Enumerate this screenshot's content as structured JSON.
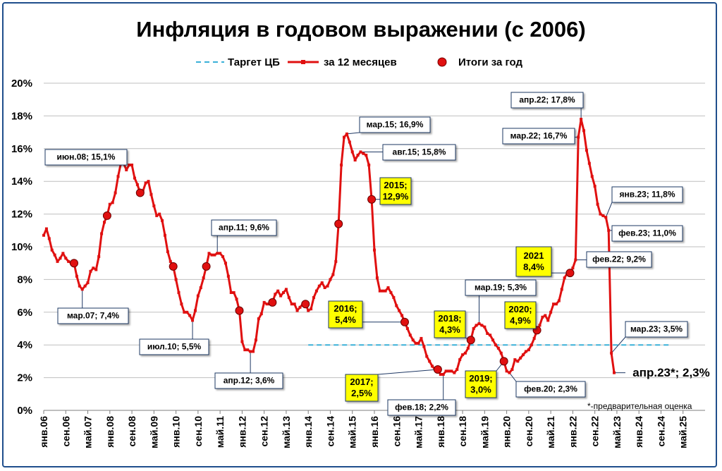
{
  "chart_data": {
    "type": "line",
    "title": "Инфляция в годовом выражении (с 2006)",
    "y_unit": "%",
    "ylim": [
      0,
      20
    ],
    "yticks": [
      "0%",
      "2%",
      "4%",
      "6%",
      "8%",
      "10%",
      "12%",
      "14%",
      "16%",
      "18%",
      "20%"
    ],
    "xticks": [
      "янв.06",
      "сен.06",
      "май.07",
      "янв.08",
      "сен.08",
      "май.09",
      "янв.10",
      "сен.10",
      "май.11",
      "янв.12",
      "сен.12",
      "май.13",
      "янв.14",
      "сен.14",
      "май.15",
      "янв.16",
      "сен.16",
      "май.17",
      "янв.18",
      "сен.18",
      "май.19",
      "янв.20",
      "сен.20",
      "май.21",
      "янв.22",
      "сен.22",
      "май.23",
      "янв.24",
      "сен.24",
      "май.25"
    ],
    "grid": "horizontal",
    "legend_position": "top",
    "series": [
      {
        "name": "Таргет ЦБ",
        "style": "dashed",
        "color": "#3ab0d8",
        "points": [
          [
            "2014-01",
            4.0
          ],
          [
            "2024-12",
            4.0
          ]
        ]
      },
      {
        "name": "за 12 месяцев",
        "style": "line-markers",
        "color": "#e01010",
        "points": [
          [
            "2006-01",
            10.7
          ],
          [
            "2006-02",
            11.1
          ],
          [
            "2006-03",
            10.5
          ],
          [
            "2006-04",
            9.8
          ],
          [
            "2006-05",
            9.5
          ],
          [
            "2006-06",
            9.1
          ],
          [
            "2006-07",
            9.3
          ],
          [
            "2006-08",
            9.6
          ],
          [
            "2006-09",
            9.3
          ],
          [
            "2006-10",
            9.1
          ],
          [
            "2006-11",
            9.0
          ],
          [
            "2006-12",
            9.0
          ],
          [
            "2007-01",
            8.2
          ],
          [
            "2007-02",
            7.6
          ],
          [
            "2007-03",
            7.4
          ],
          [
            "2007-04",
            7.6
          ],
          [
            "2007-05",
            7.8
          ],
          [
            "2007-06",
            8.5
          ],
          [
            "2007-07",
            8.7
          ],
          [
            "2007-08",
            8.6
          ],
          [
            "2007-09",
            9.4
          ],
          [
            "2007-10",
            10.8
          ],
          [
            "2007-11",
            11.5
          ],
          [
            "2007-12",
            11.9
          ],
          [
            "2008-01",
            12.6
          ],
          [
            "2008-02",
            12.7
          ],
          [
            "2008-03",
            13.3
          ],
          [
            "2008-04",
            14.3
          ],
          [
            "2008-05",
            15.1
          ],
          [
            "2008-06",
            15.1
          ],
          [
            "2008-07",
            14.7
          ],
          [
            "2008-08",
            15.0
          ],
          [
            "2008-09",
            15.0
          ],
          [
            "2008-10",
            14.2
          ],
          [
            "2008-11",
            13.8
          ],
          [
            "2008-12",
            13.3
          ],
          [
            "2009-01",
            13.4
          ],
          [
            "2009-02",
            13.9
          ],
          [
            "2009-03",
            14.0
          ],
          [
            "2009-04",
            13.2
          ],
          [
            "2009-05",
            12.5
          ],
          [
            "2009-06",
            11.9
          ],
          [
            "2009-07",
            12.0
          ],
          [
            "2009-08",
            11.6
          ],
          [
            "2009-09",
            10.7
          ],
          [
            "2009-10",
            9.7
          ],
          [
            "2009-11",
            9.1
          ],
          [
            "2009-12",
            8.8
          ],
          [
            "2010-01",
            8.0
          ],
          [
            "2010-02",
            7.2
          ],
          [
            "2010-03",
            6.5
          ],
          [
            "2010-04",
            6.0
          ],
          [
            "2010-05",
            6.0
          ],
          [
            "2010-06",
            5.8
          ],
          [
            "2010-07",
            5.5
          ],
          [
            "2010-08",
            6.1
          ],
          [
            "2010-09",
            7.0
          ],
          [
            "2010-10",
            7.5
          ],
          [
            "2010-11",
            8.1
          ],
          [
            "2010-12",
            8.8
          ],
          [
            "2011-01",
            9.6
          ],
          [
            "2011-02",
            9.5
          ],
          [
            "2011-03",
            9.5
          ],
          [
            "2011-04",
            9.6
          ],
          [
            "2011-05",
            9.6
          ],
          [
            "2011-06",
            9.4
          ],
          [
            "2011-07",
            9.0
          ],
          [
            "2011-08",
            8.2
          ],
          [
            "2011-09",
            7.2
          ],
          [
            "2011-10",
            7.2
          ],
          [
            "2011-11",
            6.8
          ],
          [
            "2011-12",
            6.1
          ],
          [
            "2012-01",
            4.2
          ],
          [
            "2012-02",
            3.7
          ],
          [
            "2012-03",
            3.7
          ],
          [
            "2012-04",
            3.6
          ],
          [
            "2012-05",
            3.6
          ],
          [
            "2012-06",
            4.3
          ],
          [
            "2012-07",
            5.6
          ],
          [
            "2012-08",
            5.9
          ],
          [
            "2012-09",
            6.6
          ],
          [
            "2012-10",
            6.5
          ],
          [
            "2012-11",
            6.5
          ],
          [
            "2012-12",
            6.6
          ],
          [
            "2013-01",
            7.1
          ],
          [
            "2013-02",
            7.3
          ],
          [
            "2013-03",
            7.0
          ],
          [
            "2013-04",
            7.2
          ],
          [
            "2013-05",
            7.4
          ],
          [
            "2013-06",
            6.9
          ],
          [
            "2013-07",
            6.5
          ],
          [
            "2013-08",
            6.5
          ],
          [
            "2013-09",
            6.1
          ],
          [
            "2013-10",
            6.3
          ],
          [
            "2013-11",
            6.5
          ],
          [
            "2013-12",
            6.5
          ],
          [
            "2014-01",
            6.1
          ],
          [
            "2014-02",
            6.2
          ],
          [
            "2014-03",
            6.9
          ],
          [
            "2014-04",
            7.3
          ],
          [
            "2014-05",
            7.6
          ],
          [
            "2014-06",
            7.8
          ],
          [
            "2014-07",
            7.5
          ],
          [
            "2014-08",
            7.6
          ],
          [
            "2014-09",
            8.0
          ],
          [
            "2014-10",
            8.3
          ],
          [
            "2014-11",
            9.1
          ],
          [
            "2014-12",
            11.4
          ],
          [
            "2015-01",
            15.0
          ],
          [
            "2015-02",
            16.7
          ],
          [
            "2015-03",
            16.9
          ],
          [
            "2015-04",
            16.4
          ],
          [
            "2015-05",
            15.8
          ],
          [
            "2015-06",
            15.3
          ],
          [
            "2015-07",
            15.6
          ],
          [
            "2015-08",
            15.8
          ],
          [
            "2015-09",
            15.7
          ],
          [
            "2015-10",
            15.6
          ],
          [
            "2015-11",
            15.0
          ],
          [
            "2015-12",
            12.9
          ],
          [
            "2016-01",
            9.8
          ],
          [
            "2016-02",
            8.1
          ],
          [
            "2016-03",
            7.3
          ],
          [
            "2016-04",
            7.3
          ],
          [
            "2016-05",
            7.3
          ],
          [
            "2016-06",
            7.5
          ],
          [
            "2016-07",
            7.2
          ],
          [
            "2016-08",
            6.9
          ],
          [
            "2016-09",
            6.4
          ],
          [
            "2016-10",
            6.1
          ],
          [
            "2016-11",
            5.8
          ],
          [
            "2016-12",
            5.4
          ],
          [
            "2017-01",
            5.0
          ],
          [
            "2017-02",
            4.6
          ],
          [
            "2017-03",
            4.3
          ],
          [
            "2017-04",
            4.1
          ],
          [
            "2017-05",
            4.1
          ],
          [
            "2017-06",
            4.4
          ],
          [
            "2017-07",
            3.9
          ],
          [
            "2017-08",
            3.3
          ],
          [
            "2017-09",
            3.0
          ],
          [
            "2017-10",
            2.7
          ],
          [
            "2017-11",
            2.5
          ],
          [
            "2017-12",
            2.5
          ],
          [
            "2018-01",
            2.2
          ],
          [
            "2018-02",
            2.2
          ],
          [
            "2018-03",
            2.4
          ],
          [
            "2018-04",
            2.4
          ],
          [
            "2018-05",
            2.4
          ],
          [
            "2018-06",
            2.3
          ],
          [
            "2018-07",
            2.5
          ],
          [
            "2018-08",
            3.1
          ],
          [
            "2018-09",
            3.4
          ],
          [
            "2018-10",
            3.5
          ],
          [
            "2018-11",
            3.8
          ],
          [
            "2018-12",
            4.3
          ],
          [
            "2019-01",
            5.0
          ],
          [
            "2019-02",
            5.2
          ],
          [
            "2019-03",
            5.3
          ],
          [
            "2019-04",
            5.2
          ],
          [
            "2019-05",
            5.1
          ],
          [
            "2019-06",
            4.7
          ],
          [
            "2019-07",
            4.6
          ],
          [
            "2019-08",
            4.3
          ],
          [
            "2019-09",
            4.0
          ],
          [
            "2019-10",
            3.8
          ],
          [
            "2019-11",
            3.5
          ],
          [
            "2019-12",
            3.0
          ],
          [
            "2020-01",
            2.4
          ],
          [
            "2020-02",
            2.3
          ],
          [
            "2020-03",
            2.5
          ],
          [
            "2020-04",
            3.1
          ],
          [
            "2020-05",
            3.0
          ],
          [
            "2020-06",
            3.2
          ],
          [
            "2020-07",
            3.4
          ],
          [
            "2020-08",
            3.6
          ],
          [
            "2020-09",
            3.7
          ],
          [
            "2020-10",
            4.0
          ],
          [
            "2020-11",
            4.4
          ],
          [
            "2020-12",
            4.9
          ],
          [
            "2021-01",
            5.2
          ],
          [
            "2021-02",
            5.7
          ],
          [
            "2021-03",
            5.8
          ],
          [
            "2021-04",
            5.5
          ],
          [
            "2021-05",
            6.0
          ],
          [
            "2021-06",
            6.5
          ],
          [
            "2021-07",
            6.5
          ],
          [
            "2021-08",
            6.7
          ],
          [
            "2021-09",
            7.4
          ],
          [
            "2021-10",
            8.1
          ],
          [
            "2021-11",
            8.4
          ],
          [
            "2021-12",
            8.4
          ],
          [
            "2022-01",
            8.7
          ],
          [
            "2022-02",
            9.2
          ],
          [
            "2022-03",
            16.7
          ],
          [
            "2022-04",
            17.8
          ],
          [
            "2022-05",
            17.1
          ],
          [
            "2022-06",
            15.9
          ],
          [
            "2022-07",
            15.1
          ],
          [
            "2022-08",
            14.3
          ],
          [
            "2022-09",
            13.7
          ],
          [
            "2022-10",
            12.6
          ],
          [
            "2022-11",
            12.0
          ],
          [
            "2022-12",
            11.9
          ],
          [
            "2023-01",
            11.8
          ],
          [
            "2023-02",
            11.0
          ],
          [
            "2023-03",
            3.5
          ],
          [
            "2023-04",
            2.3
          ]
        ]
      },
      {
        "name": "Итоги за год",
        "style": "markers",
        "color": "#e01010",
        "points": [
          [
            "2006-12",
            9.0
          ],
          [
            "2007-12",
            11.9
          ],
          [
            "2008-12",
            13.3
          ],
          [
            "2009-12",
            8.8
          ],
          [
            "2010-12",
            8.8
          ],
          [
            "2011-12",
            6.1
          ],
          [
            "2012-12",
            6.6
          ],
          [
            "2013-12",
            6.5
          ],
          [
            "2014-12",
            11.4
          ],
          [
            "2015-12",
            12.9
          ],
          [
            "2016-12",
            5.4
          ],
          [
            "2017-12",
            2.5
          ],
          [
            "2018-12",
            4.3
          ],
          [
            "2019-12",
            3.0
          ],
          [
            "2020-12",
            4.9
          ],
          [
            "2021-12",
            8.4
          ]
        ]
      }
    ],
    "annotations": [
      {
        "text": "июн.08; 15,1%",
        "date": "2008-06",
        "value": 15.1,
        "style": "white"
      },
      {
        "text": "мар.07; 7,4%",
        "date": "2007-03",
        "value": 7.4,
        "style": "white"
      },
      {
        "text": "июл.10; 5,5%",
        "date": "2010-07",
        "value": 5.5,
        "style": "white"
      },
      {
        "text": "апр.11; 9,6%",
        "date": "2011-04",
        "value": 9.6,
        "style": "white"
      },
      {
        "text": "апр.12; 3,6%",
        "date": "2012-04",
        "value": 3.6,
        "style": "white"
      },
      {
        "text": "мар.15; 16,9%",
        "date": "2015-03",
        "value": 16.9,
        "style": "white"
      },
      {
        "text": "авг.15; 15,8%",
        "date": "2015-08",
        "value": 15.8,
        "style": "white"
      },
      {
        "text": "фев.18; 2,2%",
        "date": "2018-02",
        "value": 2.2,
        "style": "white"
      },
      {
        "text": "мар.19; 5,3%",
        "date": "2019-03",
        "value": 5.3,
        "style": "white"
      },
      {
        "text": "фев.20; 2,3%",
        "date": "2020-02",
        "value": 2.3,
        "style": "white"
      },
      {
        "text": "апр.22; 17,8%",
        "date": "2022-04",
        "value": 17.8,
        "style": "white"
      },
      {
        "text": "мар.22; 16,7%",
        "date": "2022-03",
        "value": 16.7,
        "style": "white"
      },
      {
        "text": "фев.22; 9,2%",
        "date": "2022-02",
        "value": 9.2,
        "style": "white"
      },
      {
        "text": "янв.23; 11,8%",
        "date": "2023-01",
        "value": 11.8,
        "style": "white"
      },
      {
        "text": "фев.23; 11,0%",
        "date": "2023-02",
        "value": 11.0,
        "style": "white"
      },
      {
        "text": "мар.23; 3,5%",
        "date": "2023-03",
        "value": 3.5,
        "style": "white"
      },
      {
        "text": "апр.23*; 2,3%",
        "date": "2023-04",
        "value": 2.3,
        "style": "plain"
      },
      {
        "text": "2015;\n12,9%",
        "date": "2015-12",
        "value": 12.9,
        "style": "yellow"
      },
      {
        "text": "2016;\n5,4%",
        "date": "2016-12",
        "value": 5.4,
        "style": "yellow"
      },
      {
        "text": "2017;\n2,5%",
        "date": "2017-12",
        "value": 2.5,
        "style": "yellow"
      },
      {
        "text": "2018;\n4,3%",
        "date": "2018-12",
        "value": 4.3,
        "style": "yellow"
      },
      {
        "text": "2019;\n3,0%",
        "date": "2019-12",
        "value": 3.0,
        "style": "yellow"
      },
      {
        "text": "2020;\n4,9%",
        "date": "2020-12",
        "value": 4.9,
        "style": "yellow"
      },
      {
        "text": "2021\n8,4%",
        "date": "2021-12",
        "value": 8.4,
        "style": "yellow"
      }
    ],
    "footnote": "*-предварительная оценка"
  }
}
